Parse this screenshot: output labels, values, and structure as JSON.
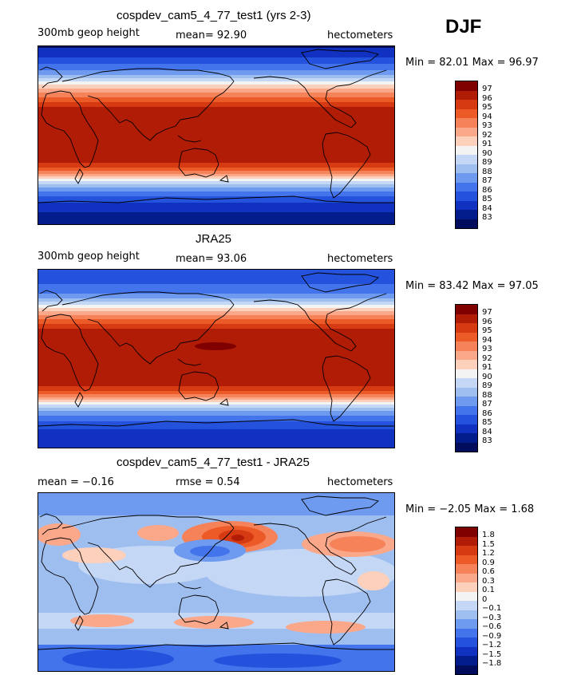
{
  "season": "DJF",
  "panels": [
    {
      "title": "cospdev_cam5_4_77_test1 (yrs 2-3)",
      "variable": "300mb geop height",
      "stat": "mean=  92.90",
      "units": "hectometers",
      "minmax": "Min =  82.01 Max =  96.97",
      "levels": [
        "97",
        "96",
        "95",
        "94",
        "93",
        "92",
        "91",
        "90",
        "89",
        "88",
        "87",
        "86",
        "85",
        "84",
        "83"
      ]
    },
    {
      "title": "JRA25",
      "variable": "300mb geop height",
      "stat": "mean=  93.06",
      "units": "hectometers",
      "minmax": "Min =  83.42 Max =  97.05",
      "levels": [
        "97",
        "96",
        "95",
        "94",
        "93",
        "92",
        "91",
        "90",
        "89",
        "88",
        "87",
        "86",
        "85",
        "84",
        "83"
      ]
    },
    {
      "title": "cospdev_cam5_4_77_test1 - JRA25",
      "variable": "mean =  −0.16",
      "stat": "rmse =   0.54",
      "units": "hectometers",
      "minmax": "Min =  −2.05 Max =   1.68",
      "levels": [
        "1.8",
        "1.5",
        "1.2",
        "0.9",
        "0.6",
        "0.3",
        "0.1",
        "0",
        "−0.1",
        "−0.3",
        "−0.6",
        "−0.9",
        "−1.2",
        "−1.5",
        "−1.8"
      ]
    }
  ],
  "colors": {
    "scale": [
      "#800000",
      "#b01c05",
      "#d63a12",
      "#ec5a28",
      "#f58258",
      "#fba78a",
      "#fdd0bb",
      "#f3f3f3",
      "#c4d7f5",
      "#9fbef0",
      "#6e9af0",
      "#4474ec",
      "#2552dc",
      "#1131c0",
      "#031c8c",
      "#020c5c"
    ]
  }
}
